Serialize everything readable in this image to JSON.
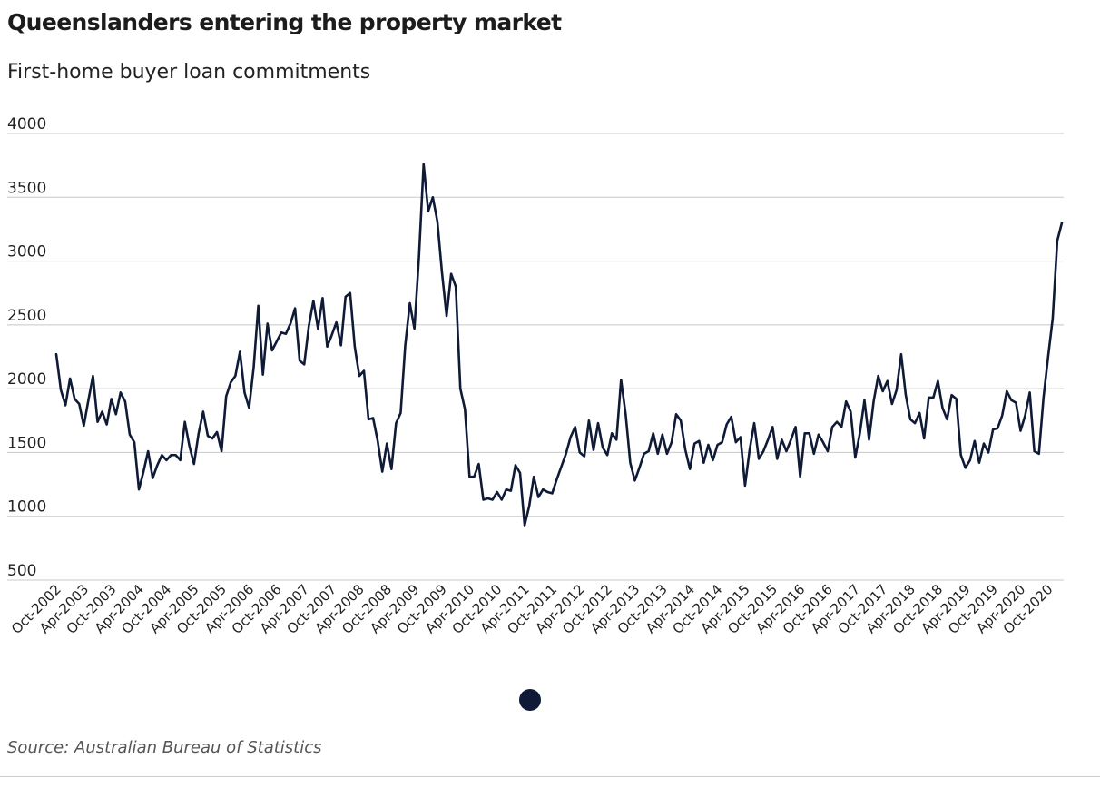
{
  "header": {
    "title": "Queenslanders entering the property market",
    "subtitle": "First-home buyer loan commitments"
  },
  "footer": {
    "source": "Source: Australian Bureau of Statistics"
  },
  "colors": {
    "line": "#0f1a36",
    "grid": "#c8c8c8",
    "pager_dot": "#0f1a36"
  },
  "chart_data": {
    "type": "line",
    "title": "Queenslanders entering the property market",
    "subtitle": "First-home buyer loan commitments",
    "xlabel": "",
    "ylabel": "",
    "ylim": [
      500,
      4000
    ],
    "yticks": [
      500,
      1000,
      1500,
      2000,
      2500,
      3000,
      3500,
      4000
    ],
    "grid": true,
    "x_start": "Oct-2002",
    "x_frequency": "monthly",
    "x_tick_labels": [
      "Oct-2002",
      "Apr-2003",
      "Oct-2003",
      "Apr-2004",
      "Oct-2004",
      "Apr-2005",
      "Oct-2005",
      "Apr-2006",
      "Oct-2006",
      "Apr-2007",
      "Oct-2007",
      "Apr-2008",
      "Oct-2008",
      "Apr-2009",
      "Oct-2009",
      "Apr-2010",
      "Oct-2010",
      "Apr-2011",
      "Oct-2011",
      "Apr-2012",
      "Oct-2012",
      "Apr-2013",
      "Oct-2013",
      "Apr-2014",
      "Oct-2014",
      "Apr-2015",
      "Oct-2015",
      "Apr-2016",
      "Oct-2016",
      "Apr-2017",
      "Oct-2017",
      "Apr-2018",
      "Oct-2018",
      "Apr-2019",
      "Oct-2019",
      "Apr-2020",
      "Oct-2020"
    ],
    "series": [
      {
        "values": [
          2270,
          1990,
          1870,
          2080,
          1920,
          1880,
          1710,
          1910,
          2100,
          1740,
          1820,
          1720,
          1920,
          1800,
          1970,
          1900,
          1640,
          1580,
          1210,
          1350,
          1510,
          1300,
          1400,
          1480,
          1440,
          1480,
          1480,
          1440,
          1740,
          1550,
          1410,
          1650,
          1820,
          1630,
          1610,
          1660,
          1510,
          1940,
          2050,
          2100,
          2290,
          1970,
          1850,
          2170,
          2650,
          2110,
          2510,
          2300,
          2370,
          2440,
          2430,
          2510,
          2630,
          2220,
          2190,
          2490,
          2690,
          2470,
          2710,
          2330,
          2420,
          2520,
          2340,
          2720,
          2750,
          2330,
          2100,
          2140,
          1760,
          1770,
          1590,
          1350,
          1570,
          1370,
          1730,
          1810,
          2340,
          2670,
          2470,
          3040,
          3760,
          3390,
          3500,
          3310,
          2910,
          2570,
          2900,
          2800,
          2000,
          1840,
          1310,
          1310,
          1410,
          1130,
          1140,
          1130,
          1190,
          1130,
          1210,
          1200,
          1400,
          1340,
          930,
          1080,
          1310,
          1150,
          1210,
          1190,
          1180,
          1290,
          1390,
          1490,
          1620,
          1700,
          1500,
          1470,
          1750,
          1520,
          1730,
          1540,
          1480,
          1650,
          1600,
          2070,
          1800,
          1420,
          1280,
          1380,
          1490,
          1510,
          1650,
          1490,
          1640,
          1490,
          1580,
          1800,
          1750,
          1520,
          1370,
          1570,
          1590,
          1420,
          1560,
          1440,
          1560,
          1580,
          1720,
          1780,
          1580,
          1620,
          1240,
          1520,
          1730,
          1450,
          1510,
          1600,
          1700,
          1450,
          1600,
          1510,
          1600,
          1700,
          1310,
          1650,
          1650,
          1490,
          1640,
          1580,
          1510,
          1700,
          1740,
          1700,
          1900,
          1820,
          1460,
          1650,
          1910,
          1600,
          1900,
          2100,
          1980,
          2060,
          1880,
          1990,
          2270,
          1950,
          1760,
          1730,
          1810,
          1610,
          1930,
          1930,
          2060,
          1850,
          1760,
          1950,
          1920,
          1480,
          1380,
          1440,
          1590,
          1420,
          1570,
          1500,
          1680,
          1690,
          1790,
          1980,
          1910,
          1890,
          1670,
          1790,
          1970,
          1510,
          1490,
          1930,
          2250,
          2550,
          3160,
          3300
        ]
      }
    ]
  }
}
